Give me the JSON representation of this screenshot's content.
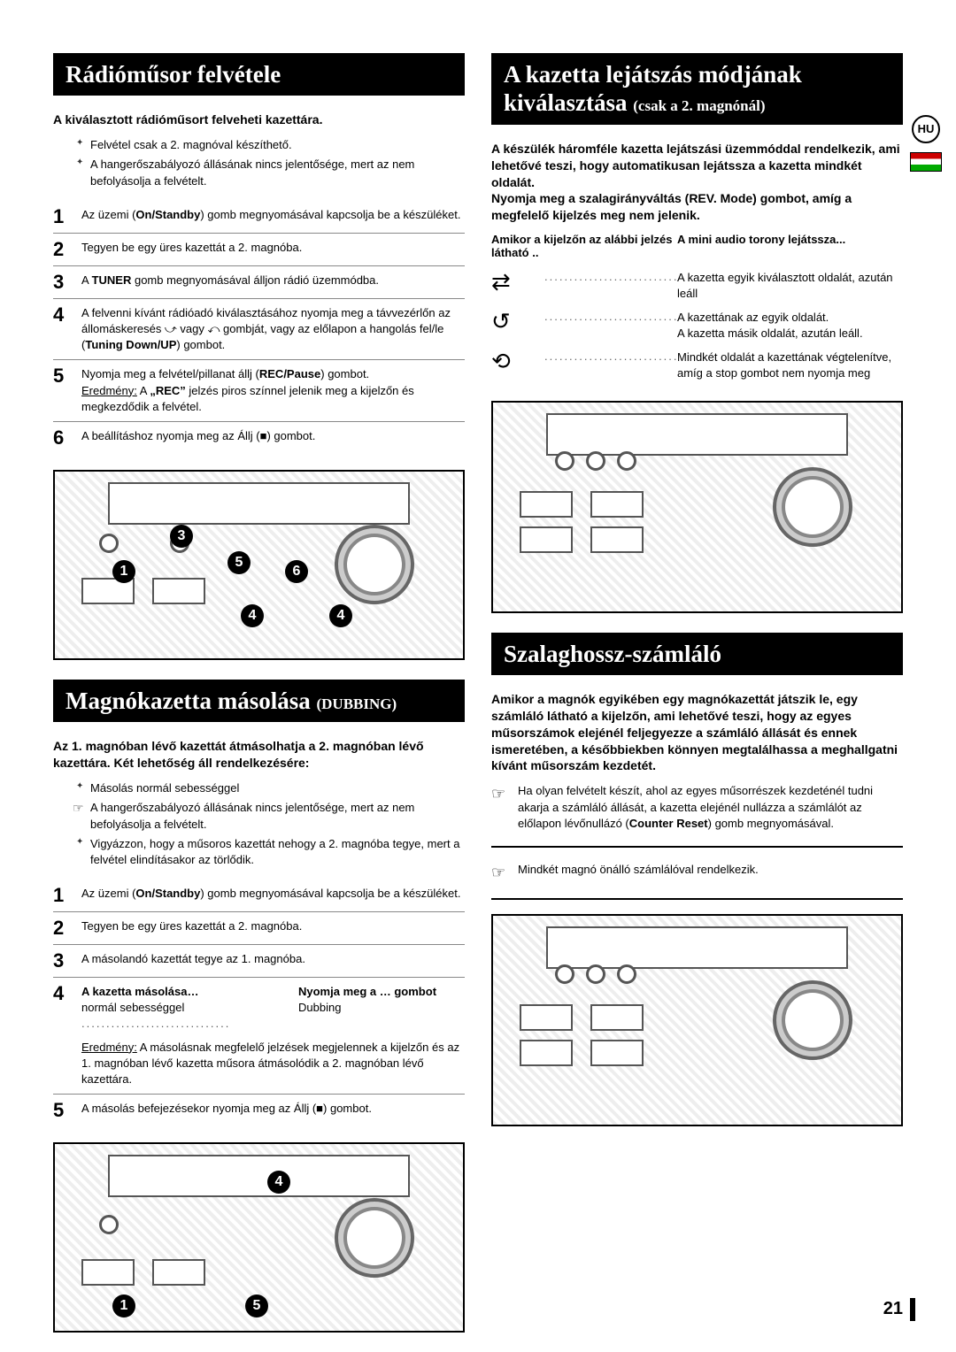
{
  "lang_badge": "HU",
  "page_number": "21",
  "left": {
    "sec1_title": "Rádióműsor felvétele",
    "sec1_intro": "A kiválasztott rádióműsort felveheti kazettára.",
    "sec1_bullets": [
      "Felvétel csak a 2. magnóval készíthető.",
      "A hangerőszabályozó állásának nincs jelentősége, mert az nem befolyásolja a felvételt."
    ],
    "sec1_steps": [
      {
        "n": "1",
        "html": "Az üzemi (<b>On/Standby</b>) gomb megnyomásával kapcsolja be a készüléket."
      },
      {
        "n": "2",
        "html": "Tegyen be egy üres kazettát a 2. magnóba."
      },
      {
        "n": "3",
        "html": "A <b>TUNER</b> gomb megnyomásával álljon rádió üzemmódba."
      },
      {
        "n": "4",
        "html": "A felvenni kívánt rádióadó kiválasztásához nyomja meg a távvezérlőn az állomáskeresés ⤻ vagy ⤺ gombját, vagy az előlapon a hangolás fel/le (<b>Tuning Down/UP</b>) gombot."
      },
      {
        "n": "5",
        "html": "Nyomja meg a felvétel/pillanat állj (<b>REC/Pause</b>) gombot.<br><u>Eredmény:</u> A <b>„REC”</b> jelzés piros színnel jelenik meg a kijelzőn és megkezdődik a felvétel."
      },
      {
        "n": "6",
        "html": "A beállításhoz nyomja meg az Állj (■) gombot."
      }
    ],
    "sec2_title": "Magnókazetta másolása ",
    "sec2_title_sub": "(DUBBING)",
    "sec2_intro": "Az 1. magnóban lévő kazettát átmásolhatja a 2. magnóban lévő kazettára. Két lehetőség áll rendelkezésére:",
    "sec2_bullets": [
      {
        "hand": false,
        "txt": "Másolás normál sebességgel"
      },
      {
        "hand": true,
        "txt": "A hangerőszabályozó állásának nincs jelentősége, mert az nem befolyásolja a felvételt."
      },
      {
        "hand": false,
        "txt": "Vigyázzon, hogy a műsoros kazettát nehogy a 2. magnóba tegye, mert a felvétel elindításakor az törlődik."
      }
    ],
    "sec2_steps": [
      {
        "n": "1",
        "html": "Az üzemi (<b>On/Standby</b>) gomb megnyomásával kapcsolja be a készüléket."
      },
      {
        "n": "2",
        "html": "Tegyen be egy üres kazettát a 2. magnóba."
      },
      {
        "n": "3",
        "html": "A másolandó kazettát tegye az 1. magnóba."
      },
      {
        "n": "4",
        "table": {
          "h1": "A kazetta másolása…",
          "h2": "Nyomja meg a … gombot",
          "r1": "normál sebességgel",
          "r2": "Dubbing"
        },
        "after": "<u>Eredmény:</u> A másolásnak megfelelő jelzések megjelennek a kijelzőn és az 1. magnóban lévő kazetta műsora átmásolódik a 2. magnóban lévő kazettára."
      },
      {
        "n": "5",
        "html": "A másolás befejezésekor nyomja meg az Állj (■) gombot."
      }
    ]
  },
  "right": {
    "sec1_title_l1": "A kazetta lejátszás módjának",
    "sec1_title_l2": "kiválasztása ",
    "sec1_title_sub": "(csak a 2. magnónál)",
    "sec1_intro": "A készülék háromféle kazetta lejátszási üzemmóddal rendelkezik, ami lehetővé teszi, hogy automatikusan lejátssza a kazetta mindkét oldalát.\nNyomja meg a szalagirányváltás (REV. Mode) gombot, amíg a megfelelő kijelzés meg nem jelenik.",
    "mode_h1": "Amikor a kijelzőn az alábbi jelzés látható ..",
    "mode_h2": "A mini audio torony lejátssza...",
    "modes": [
      {
        "icon": "⇄",
        "desc": "A kazetta egyik kiválasztott oldalát, azután leáll"
      },
      {
        "icon": "↺",
        "desc": "A kazettának az egyik oldalát.\nA kazetta másik oldalát, azután leáll."
      },
      {
        "icon": "⟲",
        "desc": "Mindkét oldalát a kazettának végtelenítve, amíg a stop gombot nem nyomja meg"
      }
    ],
    "sec2_title": "Szalaghossz-számláló",
    "sec2_intro": "Amikor a magnók egyikében egy magnókazettát játszik le, egy számláló látható a kijelzőn, ami lehetővé teszi, hogy az egyes műsorszámok elejénél feljegyezze a számláló állását és ennek ismeretében, a későbbiekben könnyen megtalálhassa a meghallgatni kívánt műsorszám kezdetét.",
    "sec2_notes": [
      "Ha olyan felvételt készít, ahol az egyes műsorrészek kezdeténél tudni akarja a számláló állását, a kazetta elejénél nullázza a számlálót az előlapon lévőnullázó (Counter Reset) gomb megnyomásával.",
      "Mindkét magnó önálló számlálóval rendelkezik."
    ]
  },
  "colors": {
    "bg": "#ffffff",
    "title_bg": "#000000",
    "title_fg": "#ffffff"
  }
}
